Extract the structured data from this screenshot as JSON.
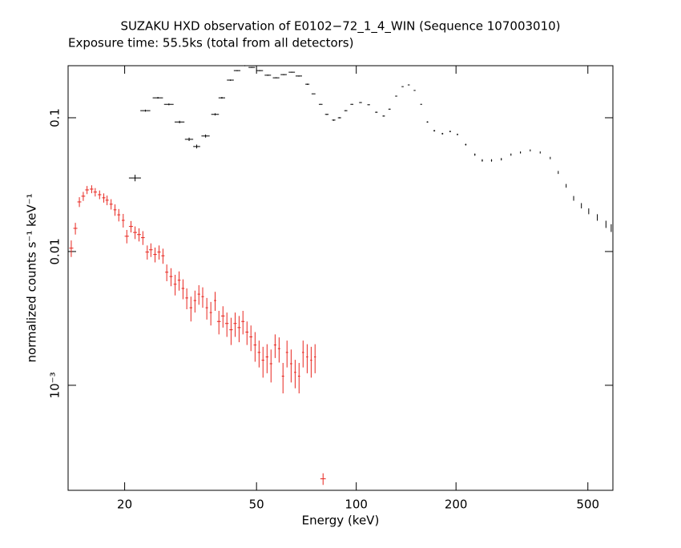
{
  "chart_data": {
    "type": "errorbar",
    "title": "SUZAKU HXD observation of E0102−72_1_4_WIN (Sequence 107003010)",
    "subtitle": "Exposure time: 55.5ks (total from all detectors)",
    "x_label": "Energy (keV)",
    "y_label": "normalized counts s⁻¹ keV⁻¹",
    "xscale": "log",
    "yscale": "log",
    "xlim": [
      13.5,
      595
    ],
    "ylim": [
      0.000164,
      0.245
    ],
    "xticks": [
      20,
      50,
      100,
      200,
      500
    ],
    "yticks": [
      0.1,
      0.01,
      {
        "value": 0.001,
        "label": "10⁻³"
      }
    ],
    "series": [
      {
        "color": "#000000",
        "x": [
          21.5,
          23.1,
          25.2,
          27.2,
          29.3,
          31.3,
          33.0,
          35.1,
          37.5,
          39.3,
          41.7,
          43.7,
          46.1,
          48.4,
          51.1,
          54.1,
          57.3,
          60.4,
          63.9,
          67.1,
          71.2,
          74.3,
          78.1,
          81.5,
          85.5,
          89.0,
          93.0,
          97.0,
          103,
          109,
          115,
          121,
          126,
          132,
          138,
          144,
          150,
          157,
          164,
          172,
          182,
          192,
          202,
          214,
          228,
          240,
          256,
          274,
          293,
          313,
          335,
          359,
          385,
          407,
          430,
          453,
          478,
          503,
          534,
          567,
          588
        ],
        "values": [
          0.0355,
          0.113,
          0.141,
          0.126,
          0.093,
          0.069,
          0.061,
          0.073,
          0.106,
          0.141,
          0.191,
          0.225,
          0.245,
          0.238,
          0.225,
          0.208,
          0.199,
          0.21,
          0.219,
          0.205,
          0.178,
          0.151,
          0.126,
          0.106,
          0.096,
          0.1,
          0.113,
          0.126,
          0.13,
          0.125,
          0.11,
          0.103,
          0.116,
          0.145,
          0.171,
          0.176,
          0.16,
          0.126,
          0.093,
          0.08,
          0.076,
          0.079,
          0.075,
          0.063,
          0.053,
          0.048,
          0.048,
          0.049,
          0.053,
          0.055,
          0.057,
          0.055,
          0.05,
          0.039,
          0.031,
          0.025,
          0.022,
          0.02,
          0.018,
          0.016,
          0.015
        ],
        "xerr": [
          0.9,
          0.8,
          0.9,
          0.9,
          1.0,
          0.9,
          0.8,
          1.0,
          1.0,
          0.9,
          1.0,
          1.0,
          1.1,
          1.1,
          1.2,
          1.2,
          1.3,
          1.3,
          1.4,
          1.5,
          1.0,
          1.0,
          1.0,
          1.0,
          1.0,
          1.0,
          1.0,
          1.0,
          1.0,
          1.0,
          1.0,
          1.0,
          1.0,
          1.0,
          1.0,
          1.0,
          1.0,
          1.0,
          1.0,
          1.0,
          1.0,
          1.0,
          1.0,
          1.0,
          1.0,
          1.0,
          1.0,
          1.0,
          1.0,
          1.0,
          1.0,
          1.0,
          1.0,
          1.0,
          1.0,
          1.0,
          1.0,
          1.0,
          1.0,
          1.0,
          1.0
        ],
        "yerr": [
          0.002,
          0.002,
          0.002,
          0.002,
          0.002,
          0.002,
          0.002,
          0.002,
          0.002,
          0.002,
          0.002,
          0.002,
          0.002,
          0.002,
          0.002,
          0.002,
          0.002,
          0.002,
          0.002,
          0.002,
          0.002,
          0.001,
          0.001,
          0.001,
          0.001,
          0.001,
          0.001,
          0.001,
          0.001,
          0.001,
          0.001,
          0.001,
          0.001,
          0.001,
          0.001,
          0.001,
          0.001,
          0.001,
          0.001,
          0.001,
          0.001,
          0.001,
          0.001,
          0.001,
          0.001,
          0.001,
          0.001,
          0.001,
          0.001,
          0.001,
          0.001,
          0.001,
          0.001,
          0.001,
          0.001,
          0.001,
          0.001,
          0.001,
          0.001,
          0.001,
          0.001
        ]
      },
      {
        "color": "#e8261f",
        "x": [
          13.8,
          14.2,
          14.6,
          15.0,
          15.4,
          15.9,
          16.3,
          16.8,
          17.3,
          17.7,
          18.2,
          18.7,
          19.2,
          19.8,
          20.3,
          20.9,
          21.5,
          22.1,
          22.7,
          23.4,
          24.0,
          24.7,
          25.4,
          26.1,
          26.8,
          27.6,
          28.4,
          29.2,
          30.0,
          30.8,
          31.7,
          32.6,
          33.5,
          34.4,
          35.4,
          36.4,
          37.5,
          38.5,
          39.6,
          40.7,
          41.9,
          43.1,
          44.3,
          45.5,
          46.8,
          48.1,
          49.5,
          50.9,
          52.3,
          53.8,
          55.3,
          56.9,
          58.5,
          60.1,
          61.8,
          63.6,
          65.4,
          67.2,
          69.1,
          71.1,
          73.1,
          75.1,
          79.4
        ],
        "values": [
          0.0106,
          0.0149,
          0.0235,
          0.0259,
          0.0289,
          0.0293,
          0.0278,
          0.0266,
          0.0252,
          0.0242,
          0.0226,
          0.0205,
          0.0188,
          0.0171,
          0.013,
          0.0154,
          0.0139,
          0.0134,
          0.0127,
          0.0099,
          0.0103,
          0.0095,
          0.0099,
          0.0093,
          0.007,
          0.0065,
          0.0057,
          0.0061,
          0.0053,
          0.0045,
          0.0038,
          0.0043,
          0.0048,
          0.0046,
          0.0038,
          0.0035,
          0.0043,
          0.003,
          0.0033,
          0.0029,
          0.0026,
          0.0029,
          0.0027,
          0.003,
          0.0025,
          0.0023,
          0.002,
          0.00176,
          0.00154,
          0.00163,
          0.00145,
          0.002,
          0.00188,
          0.00117,
          0.00176,
          0.00145,
          0.00125,
          0.00117,
          0.00176,
          0.00163,
          0.00154,
          0.00163,
          0.0002
        ],
        "xerr": [
          0.2,
          0.2,
          0.2,
          0.2,
          0.2,
          0.2,
          0.2,
          0.2,
          0.2,
          0.2,
          0.2,
          0.2,
          0.2,
          0.2,
          0.3,
          0.3,
          0.3,
          0.3,
          0.3,
          0.3,
          0.3,
          0.3,
          0.3,
          0.3,
          0.3,
          0.3,
          0.3,
          0.3,
          0.3,
          0.3,
          0.3,
          0.3,
          0.3,
          0.3,
          0.3,
          0.3,
          0.3,
          0.5,
          0.5,
          0.5,
          0.5,
          0.5,
          0.5,
          0.5,
          0.5,
          0.5,
          0.5,
          0.5,
          0.5,
          0.5,
          0.5,
          0.5,
          0.5,
          0.5,
          0.5,
          0.5,
          0.5,
          0.5,
          0.5,
          0.5,
          0.5,
          0.5,
          1.5
        ],
        "yerr": [
          0.0015,
          0.0015,
          0.002,
          0.002,
          0.002,
          0.002,
          0.002,
          0.002,
          0.002,
          0.002,
          0.002,
          0.002,
          0.002,
          0.002,
          0.0015,
          0.0015,
          0.0015,
          0.0015,
          0.0015,
          0.0012,
          0.0012,
          0.0012,
          0.0012,
          0.0012,
          0.001,
          0.001,
          0.001,
          0.001,
          0.0009,
          0.0008,
          0.0008,
          0.0008,
          0.0008,
          0.0008,
          0.0007,
          0.0007,
          0.0007,
          0.0006,
          0.0006,
          0.0006,
          0.0006,
          0.0006,
          0.0006,
          0.0006,
          0.0005,
          0.0005,
          0.0005,
          0.0004,
          0.0004,
          0.0004,
          0.0004,
          0.0004,
          0.0004,
          0.0003,
          0.0004,
          0.0004,
          0.0003,
          0.0003,
          0.0004,
          0.0004,
          0.0004,
          0.0004,
          2e-05
        ]
      }
    ]
  }
}
